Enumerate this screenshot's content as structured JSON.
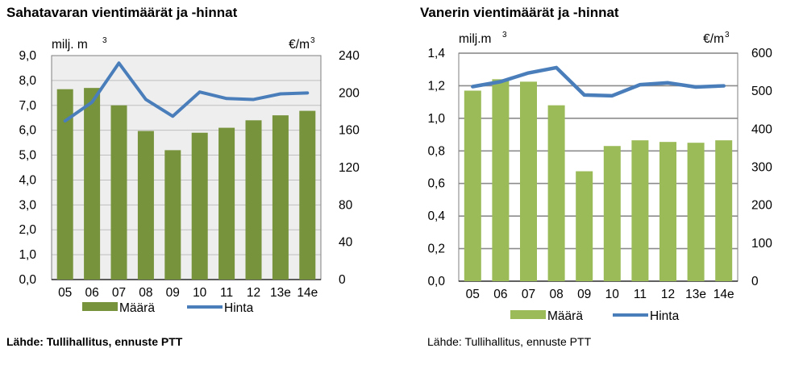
{
  "charts": [
    {
      "title": "Sahatavaran vientimäärät ja -hinnat",
      "source": "Lähde: Tullihallitus, ennuste PTT",
      "ylabel_left": "milj. m",
      "ylabel_left_sup": "3",
      "ylabel_right": "€/m",
      "ylabel_right_sup": "3",
      "legend": {
        "bar": "Määrä",
        "line": "Hinta"
      },
      "colors": {
        "bar": "#77933c",
        "line": "#4a7ebb",
        "bg": "#eeeeee",
        "grid": "#bfbfbf"
      }
    },
    {
      "title": "Vanerin vientimäärät ja -hinnat",
      "source": "Lähde: Tullihallitus, ennuste PTT",
      "ylabel_left": "milj.m",
      "ylabel_left_sup": "3",
      "ylabel_right": "€/m",
      "ylabel_right_sup": "3",
      "legend": {
        "bar": "Määrä",
        "line": "Hinta"
      },
      "colors": {
        "bar": "#9bbb59",
        "line": "#4a7ebb",
        "bg": "#ffffff",
        "grid": "#8c8c8c"
      }
    }
  ],
  "chart_data": [
    {
      "type": "bar",
      "title": "Sahatavaran vientimäärät ja -hinnat",
      "categories": [
        "05",
        "06",
        "07",
        "08",
        "09",
        "10",
        "11",
        "12",
        "13e",
        "14e"
      ],
      "series": [
        {
          "name": "Määrä",
          "type": "bar",
          "axis": "left",
          "values": [
            7.65,
            7.7,
            7.0,
            5.97,
            5.2,
            5.9,
            6.1,
            6.4,
            6.6,
            6.78
          ]
        },
        {
          "name": "Hinta",
          "type": "line",
          "axis": "right",
          "values": [
            170,
            190,
            232,
            193,
            175,
            201,
            194,
            193,
            199,
            200
          ]
        }
      ],
      "ylim_left": [
        0,
        9
      ],
      "yticks_left": [
        "0,0",
        "1,0",
        "2,0",
        "3,0",
        "4,0",
        "5,0",
        "6,0",
        "7,0",
        "8,0",
        "9,0"
      ],
      "ylim_right": [
        0,
        240
      ],
      "yticks_right": [
        "0",
        "40",
        "80",
        "120",
        "160",
        "200",
        "240"
      ],
      "grid": true,
      "legend_position": "bottom"
    },
    {
      "type": "bar",
      "title": "Vanerin vientimäärät ja -hinnat",
      "categories": [
        "05",
        "06",
        "07",
        "08",
        "09",
        "10",
        "11",
        "12",
        "13e",
        "14e"
      ],
      "series": [
        {
          "name": "Määrä",
          "type": "bar",
          "axis": "left",
          "values": [
            1.17,
            1.24,
            1.225,
            1.08,
            0.675,
            0.83,
            0.865,
            0.855,
            0.85,
            0.865
          ]
        },
        {
          "name": "Hinta",
          "type": "line",
          "axis": "right",
          "values": [
            512,
            525,
            548,
            562,
            490,
            488,
            517,
            522,
            511,
            514
          ]
        }
      ],
      "ylim_left": [
        0,
        1.4
      ],
      "yticks_left": [
        "0,0",
        "0,2",
        "0,4",
        "0,6",
        "0,8",
        "1,0",
        "1,2",
        "1,4"
      ],
      "ylim_right": [
        0,
        600
      ],
      "yticks_right": [
        "0",
        "100",
        "200",
        "300",
        "400",
        "500",
        "600"
      ],
      "grid": true,
      "legend_position": "bottom"
    }
  ]
}
